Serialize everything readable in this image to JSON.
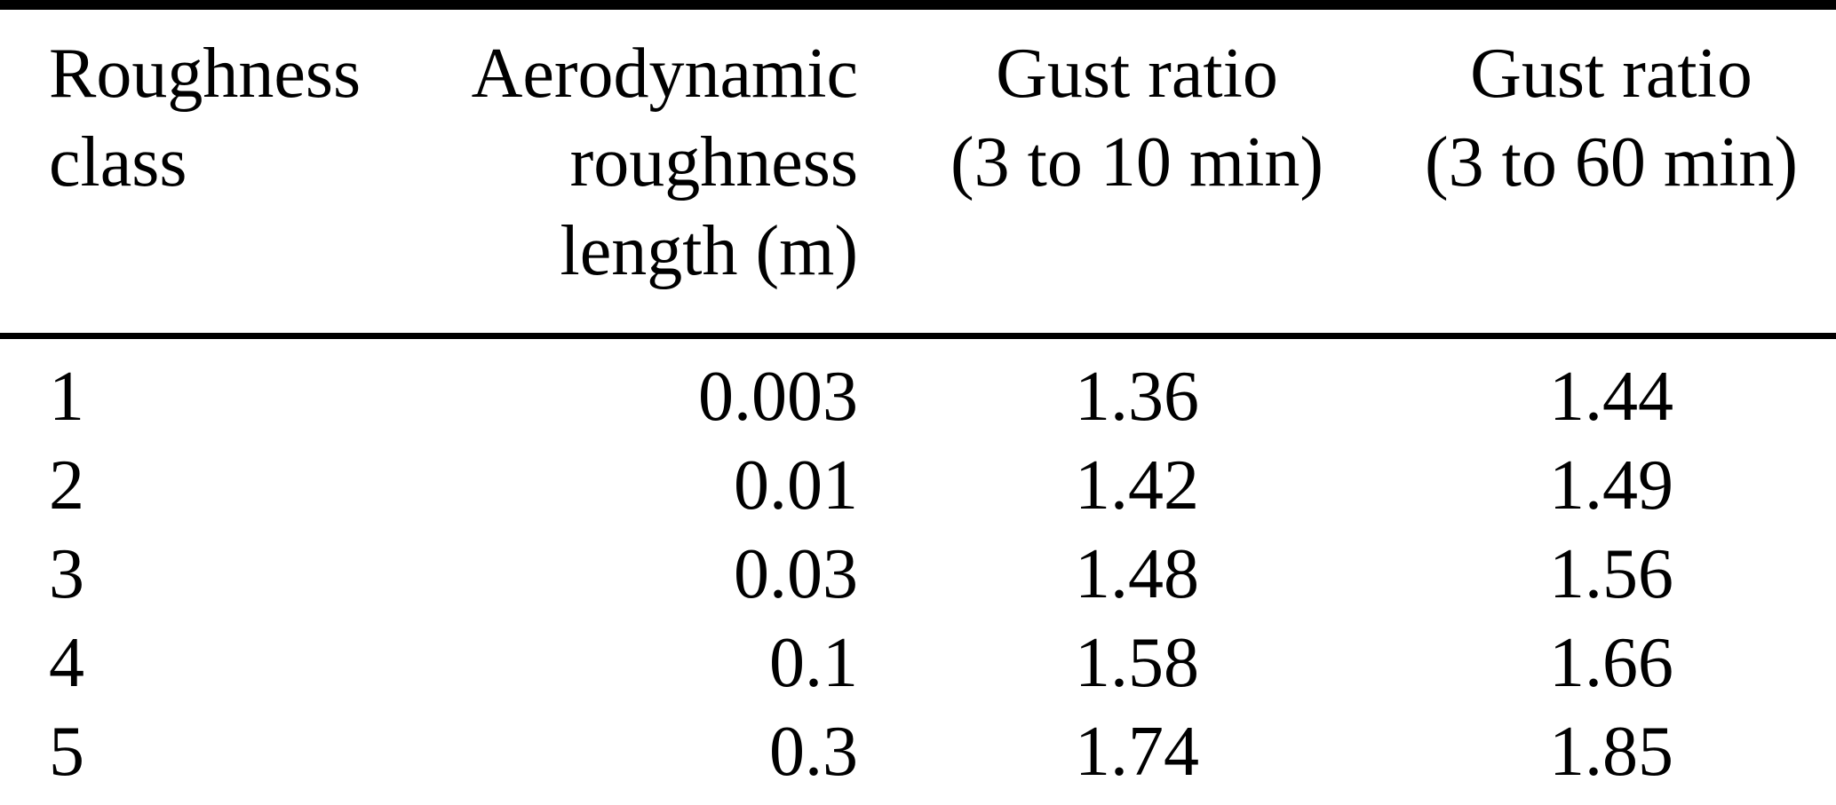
{
  "table": {
    "header": {
      "columns": [
        {
          "lines": [
            "Roughness",
            "class"
          ],
          "align": "left"
        },
        {
          "lines": [
            "Aerodynamic",
            "roughness",
            "length (m)"
          ],
          "align": "right"
        },
        {
          "lines": [
            "Gust ratio",
            "(3 to 10 min)"
          ],
          "align": "center"
        },
        {
          "lines": [
            "Gust ratio",
            "(3 to 60 min)"
          ],
          "align": "center"
        }
      ]
    },
    "rows": [
      [
        "1",
        "0.003",
        "1.36",
        "1.44"
      ],
      [
        "2",
        "0.01",
        "1.42",
        "1.49"
      ],
      [
        "3",
        "0.03",
        "1.48",
        "1.56"
      ],
      [
        "4",
        "0.1",
        "1.58",
        "1.66"
      ],
      [
        "5",
        "0.3",
        "1.74",
        "1.85"
      ]
    ]
  },
  "colors": {
    "text": "#000000",
    "background": "#ffffff",
    "rule": "#000000"
  }
}
